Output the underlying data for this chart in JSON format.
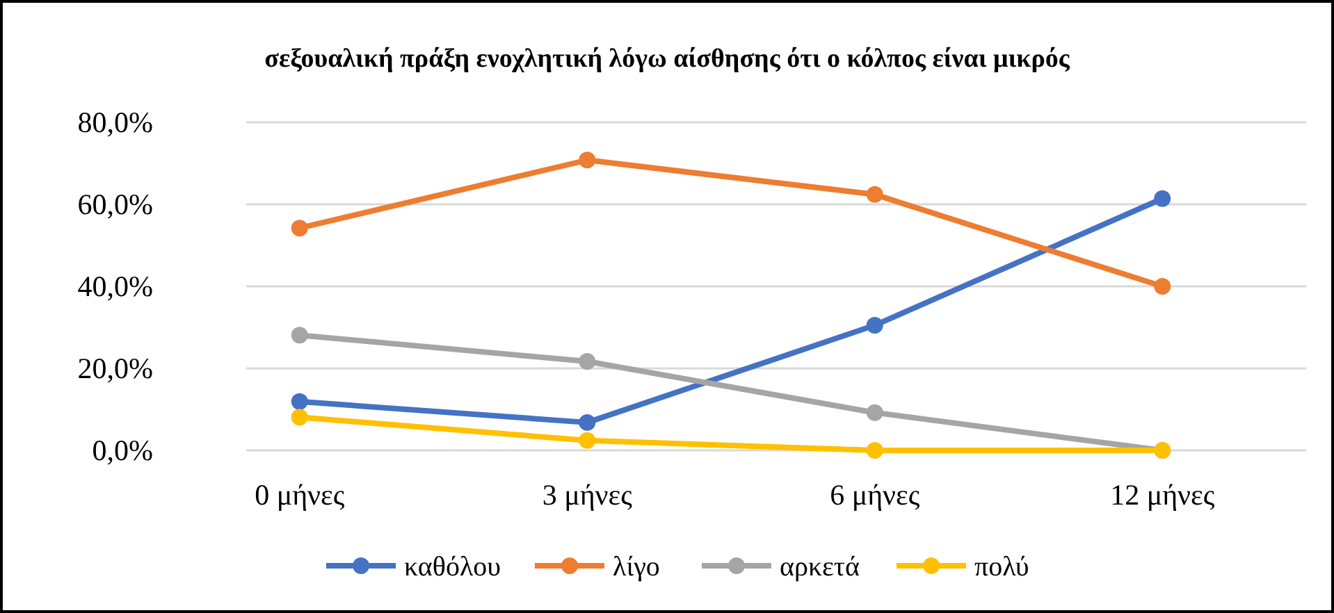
{
  "chart_data": {
    "type": "line",
    "title": "σεξουαλική πράξη ενοχλητική λόγω αίσθησης ότι ο κόλπος είναι μικρός",
    "categories": [
      "0 μήνες",
      "3 μήνες",
      "6 μήνες",
      "12 μήνες"
    ],
    "series": [
      {
        "name": "καθόλου",
        "color": "#4472c4",
        "values": [
          11.9,
          6.8,
          30.5,
          61.4
        ]
      },
      {
        "name": "λίγο",
        "color": "#ed7d31",
        "values": [
          54.2,
          70.8,
          62.4,
          40.0
        ]
      },
      {
        "name": "αρκετά",
        "color": "#a5a5a5",
        "values": [
          28.1,
          21.7,
          9.2,
          0
        ]
      },
      {
        "name": "πολύ",
        "color": "#ffc000",
        "values": [
          8.1,
          2.4,
          0,
          0
        ]
      }
    ],
    "ylim": [
      0,
      80
    ],
    "yticks": [
      {
        "value": 0,
        "label": "0,0%"
      },
      {
        "value": 20,
        "label": "20,0%"
      },
      {
        "value": 40,
        "label": "40,0%"
      },
      {
        "value": 60,
        "label": "60,0%"
      },
      {
        "value": 80,
        "label": "80,0%"
      }
    ],
    "grid": "y",
    "legend": "bottom",
    "marker": "circle",
    "line_style": "solid"
  }
}
